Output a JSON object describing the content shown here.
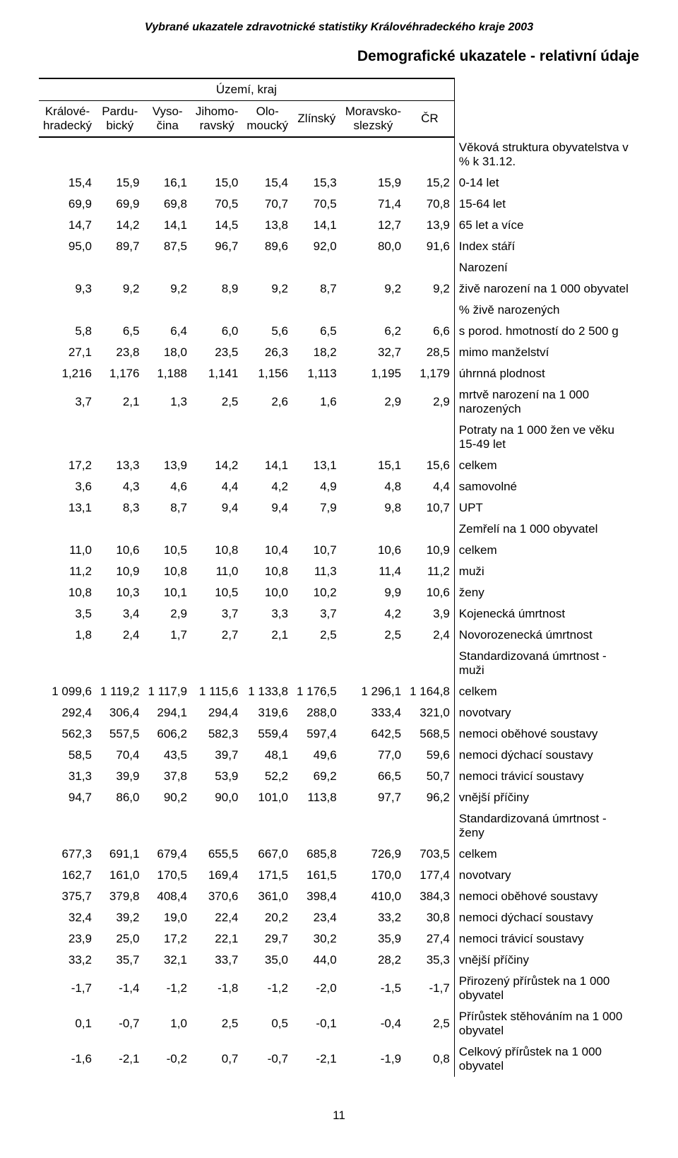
{
  "doc_header": "Vybrané ukazatele zdravotnické statistiky Královéhradeckého kraje 2003",
  "section_title": "Demografické ukazatele - relativní údaje",
  "territory_header": "Území, kraj",
  "columns": [
    "Králové-\nhradecký",
    "Pardu-\nbický",
    "Vyso-\nčina",
    "Jihomo-\nravský",
    "Olo-\nmoucký",
    "Zlínský",
    "Moravsko-\nslezský",
    "ČR"
  ],
  "page_number": "11",
  "rows": [
    {
      "label": "Věková struktura obyvatelstva v % k 31.12.",
      "values": null
    },
    {
      "label": "0-14 let",
      "indent": 1,
      "values": [
        "15,4",
        "15,9",
        "16,1",
        "15,0",
        "15,4",
        "15,3",
        "15,9",
        "15,2"
      ]
    },
    {
      "label": "15-64 let",
      "indent": 1,
      "values": [
        "69,9",
        "69,9",
        "69,8",
        "70,5",
        "70,7",
        "70,5",
        "71,4",
        "70,8"
      ]
    },
    {
      "label": "65 let a více",
      "indent": 1,
      "values": [
        "14,7",
        "14,2",
        "14,1",
        "14,5",
        "13,8",
        "14,1",
        "12,7",
        "13,9"
      ]
    },
    {
      "label": "Index stáří",
      "values": [
        "95,0",
        "89,7",
        "87,5",
        "96,7",
        "89,6",
        "92,0",
        "80,0",
        "91,6"
      ]
    },
    {
      "label": "Narození",
      "values": null
    },
    {
      "label": "živě narození na 1 000 obyvatel",
      "indent": 1,
      "values": [
        "9,3",
        "9,2",
        "9,2",
        "8,9",
        "9,2",
        "8,7",
        "9,2",
        "9,2"
      ]
    },
    {
      "label": "% živě narozených",
      "indent": 1,
      "values": null
    },
    {
      "label": "s porod. hmotností do 2 500 g",
      "indent": 2,
      "values": [
        "5,8",
        "6,5",
        "6,4",
        "6,0",
        "5,6",
        "6,5",
        "6,2",
        "6,6"
      ]
    },
    {
      "label": "mimo manželství",
      "indent": 2,
      "values": [
        "27,1",
        "23,8",
        "18,0",
        "23,5",
        "26,3",
        "18,2",
        "32,7",
        "28,5"
      ]
    },
    {
      "label": "úhrnná plodnost",
      "indent": 1,
      "values": [
        "1,216",
        "1,176",
        "1,188",
        "1,141",
        "1,156",
        "1,113",
        "1,195",
        "1,179"
      ]
    },
    {
      "label": "mrtvě narození na 1 000 narozených",
      "indent": 1,
      "values": [
        "3,7",
        "2,1",
        "1,3",
        "2,5",
        "2,6",
        "1,6",
        "2,9",
        "2,9"
      ]
    },
    {
      "label": "Potraty na 1 000 žen ve věku 15-49 let",
      "values": null
    },
    {
      "label": "celkem",
      "indent": 1,
      "values": [
        "17,2",
        "13,3",
        "13,9",
        "14,2",
        "14,1",
        "13,1",
        "15,1",
        "15,6"
      ]
    },
    {
      "label": "samovolné",
      "indent": 1,
      "values": [
        "3,6",
        "4,3",
        "4,6",
        "4,4",
        "4,2",
        "4,9",
        "4,8",
        "4,4"
      ]
    },
    {
      "label": "UPT",
      "indent": 1,
      "values": [
        "13,1",
        "8,3",
        "8,7",
        "9,4",
        "9,4",
        "7,9",
        "9,8",
        "10,7"
      ]
    },
    {
      "label": "Zemřelí na 1 000 obyvatel",
      "values": null
    },
    {
      "label": "celkem",
      "indent": 1,
      "values": [
        "11,0",
        "10,6",
        "10,5",
        "10,8",
        "10,4",
        "10,7",
        "10,6",
        "10,9"
      ]
    },
    {
      "label": "muži",
      "indent": 1,
      "values": [
        "11,2",
        "10,9",
        "10,8",
        "11,0",
        "10,8",
        "11,3",
        "11,4",
        "11,2"
      ]
    },
    {
      "label": "ženy",
      "indent": 1,
      "values": [
        "10,8",
        "10,3",
        "10,1",
        "10,5",
        "10,0",
        "10,2",
        "9,9",
        "10,6"
      ]
    },
    {
      "label": "Kojenecká úmrtnost",
      "values": [
        "3,5",
        "3,4",
        "2,9",
        "3,7",
        "3,3",
        "3,7",
        "4,2",
        "3,9"
      ]
    },
    {
      "label": "Novorozenecká úmrtnost",
      "values": [
        "1,8",
        "2,4",
        "1,7",
        "2,7",
        "2,1",
        "2,5",
        "2,5",
        "2,4"
      ]
    },
    {
      "label": "Standardizovaná úmrtnost - muži",
      "values": null
    },
    {
      "label": "celkem",
      "indent": 1,
      "values": [
        "1 099,6",
        "1 119,2",
        "1 117,9",
        "1 115,6",
        "1 133,8",
        "1 176,5",
        "1 296,1",
        "1 164,8"
      ]
    },
    {
      "label": "novotvary",
      "indent": 1,
      "values": [
        "292,4",
        "306,4",
        "294,1",
        "294,4",
        "319,6",
        "288,0",
        "333,4",
        "321,0"
      ]
    },
    {
      "label": "nemoci oběhové soustavy",
      "indent": 1,
      "values": [
        "562,3",
        "557,5",
        "606,2",
        "582,3",
        "559,4",
        "597,4",
        "642,5",
        "568,5"
      ]
    },
    {
      "label": "nemoci dýchací soustavy",
      "indent": 1,
      "values": [
        "58,5",
        "70,4",
        "43,5",
        "39,7",
        "48,1",
        "49,6",
        "77,0",
        "59,6"
      ]
    },
    {
      "label": "nemoci trávicí soustavy",
      "indent": 1,
      "values": [
        "31,3",
        "39,9",
        "37,8",
        "53,9",
        "52,2",
        "69,2",
        "66,5",
        "50,7"
      ]
    },
    {
      "label": "vnější příčiny",
      "indent": 1,
      "values": [
        "94,7",
        "86,0",
        "90,2",
        "90,0",
        "101,0",
        "113,8",
        "97,7",
        "96,2"
      ]
    },
    {
      "label": "Standardizovaná úmrtnost - ženy",
      "values": null
    },
    {
      "label": "celkem",
      "indent": 1,
      "values": [
        "677,3",
        "691,1",
        "679,4",
        "655,5",
        "667,0",
        "685,8",
        "726,9",
        "703,5"
      ]
    },
    {
      "label": "novotvary",
      "indent": 1,
      "values": [
        "162,7",
        "161,0",
        "170,5",
        "169,4",
        "171,5",
        "161,5",
        "170,0",
        "177,4"
      ]
    },
    {
      "label": "nemoci oběhové soustavy",
      "indent": 1,
      "values": [
        "375,7",
        "379,8",
        "408,4",
        "370,6",
        "361,0",
        "398,4",
        "410,0",
        "384,3"
      ]
    },
    {
      "label": "nemoci dýchací soustavy",
      "indent": 1,
      "values": [
        "32,4",
        "39,2",
        "19,0",
        "22,4",
        "20,2",
        "23,4",
        "33,2",
        "30,8"
      ]
    },
    {
      "label": "nemoci trávicí soustavy",
      "indent": 1,
      "values": [
        "23,9",
        "25,0",
        "17,2",
        "22,1",
        "29,7",
        "30,2",
        "35,9",
        "27,4"
      ]
    },
    {
      "label": "vnější příčiny",
      "indent": 1,
      "values": [
        "33,2",
        "35,7",
        "32,1",
        "33,7",
        "35,0",
        "44,0",
        "28,2",
        "35,3"
      ]
    },
    {
      "label": "Přirozený přírůstek na 1 000 obyvatel",
      "values": [
        "-1,7",
        "-1,4",
        "-1,2",
        "-1,8",
        "-1,2",
        "-2,0",
        "-1,5",
        "-1,7"
      ]
    },
    {
      "label": "Přírůstek stěhováním na 1 000 obyvatel",
      "values": [
        "0,1",
        "-0,7",
        "1,0",
        "2,5",
        "0,5",
        "-0,1",
        "-0,4",
        "2,5"
      ]
    },
    {
      "label": "Celkový přírůstek na 1 000 obyvatel",
      "values": [
        "-1,6",
        "-2,1",
        "-0,2",
        "0,7",
        "-0,7",
        "-2,1",
        "-1,9",
        "0,8"
      ]
    }
  ]
}
